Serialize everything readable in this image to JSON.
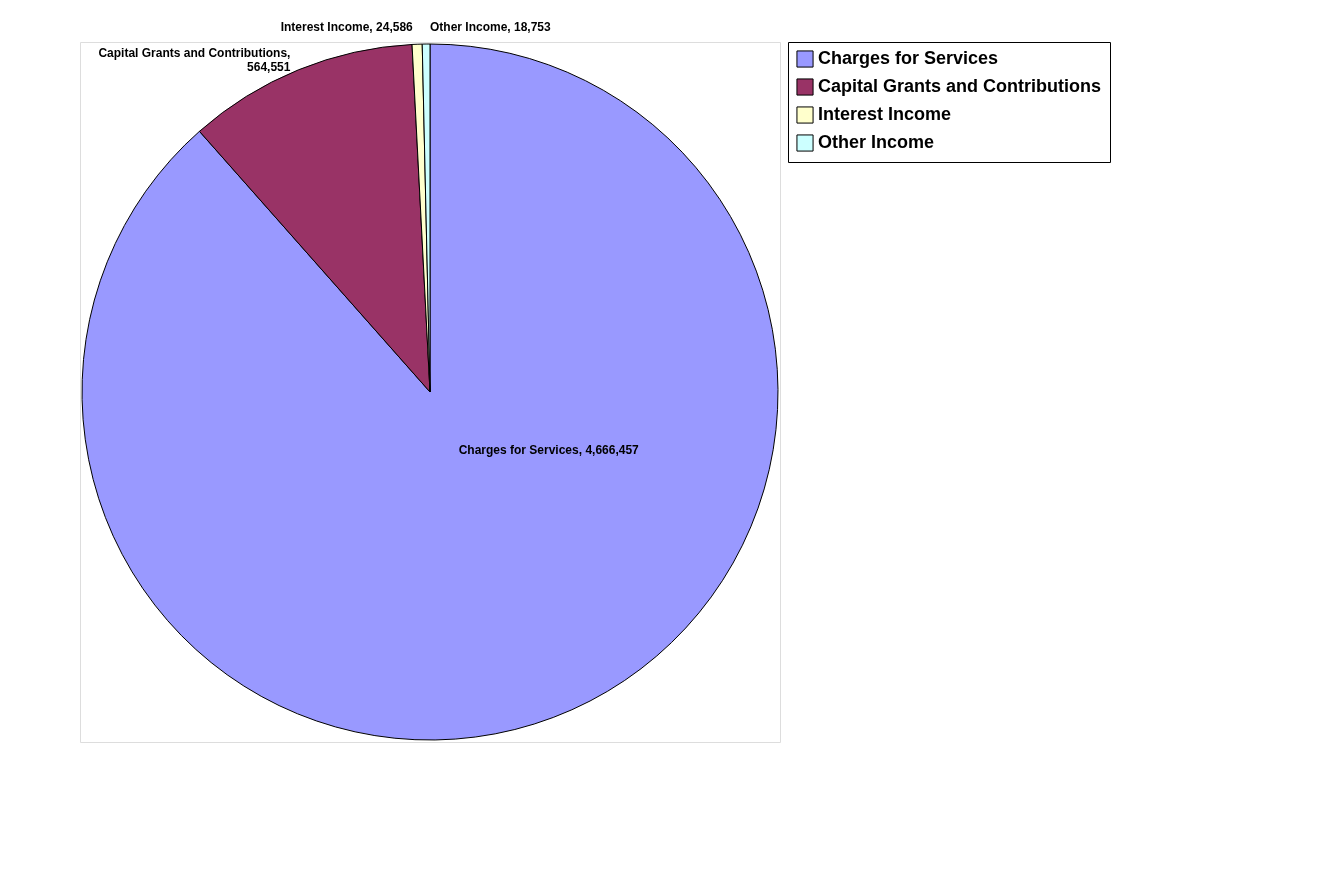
{
  "chart_data": {
    "type": "pie",
    "categories": [
      "Charges for Services",
      "Capital Grants and Contributions",
      "Interest Income",
      "Other Income"
    ],
    "values": [
      4666457,
      564551,
      24586,
      18753
    ],
    "colors": [
      "#9999ff",
      "#993366",
      "#ffffcc",
      "#ccffff"
    ],
    "value_labels": [
      "Charges for Services,  4,666,457",
      "Capital Grants and Contributions,\n564,551",
      "Interest Income,  24,586",
      "Other Income,  18,753"
    ],
    "legend": "top right"
  }
}
